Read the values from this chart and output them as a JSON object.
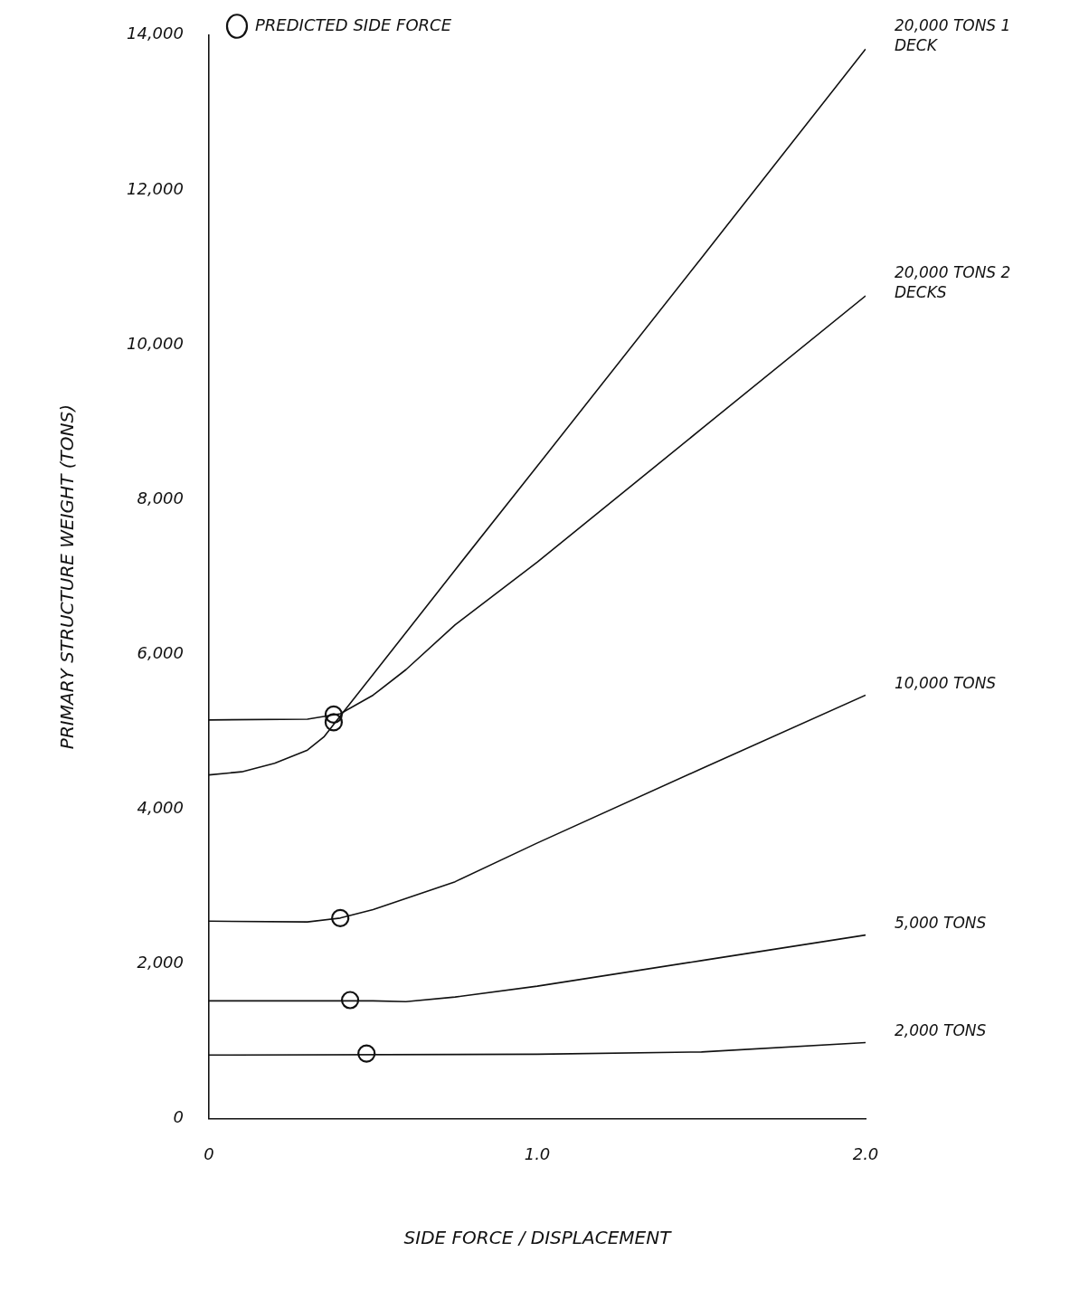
{
  "chart_data": {
    "type": "line",
    "xlabel": "SIDE FORCE / DISPLACEMENT",
    "ylabel": "PRIMARY STRUCTURE WEIGHT (TONS)",
    "xlim": [
      0,
      2
    ],
    "xticks": [
      0,
      {
        "value": 1,
        "label": "1.0"
      },
      {
        "value": 2,
        "label": "2.0"
      }
    ],
    "ylim": [
      0,
      14000
    ],
    "yticks": [
      0,
      {
        "value": 2000,
        "label": "2,000"
      },
      {
        "value": 4000,
        "label": "4,000"
      },
      {
        "value": 6000,
        "label": "6,000"
      },
      {
        "value": 8000,
        "label": "8,000"
      },
      {
        "value": 10000,
        "label": "10,000"
      },
      {
        "value": 12000,
        "label": "12,000"
      },
      {
        "value": 14000,
        "label": "14,000"
      }
    ],
    "grid": false,
    "legend": "top left",
    "marker": "none",
    "line_style": "solid",
    "series": [
      {
        "name": "20,000 TONS 1 DECK",
        "color": "#111111",
        "x": [
          0,
          0.1,
          0.2,
          0.3,
          0.35,
          0.4,
          0.5,
          0.75,
          1.0,
          1.5,
          2.0
        ],
        "values": [
          4440,
          4480,
          4590,
          4760,
          4930,
          5200,
          5740,
          7090,
          8430,
          11120,
          13820
        ]
      },
      {
        "name": "20,000 TONS 2 DECKS",
        "color": "#111111",
        "x": [
          0,
          0.3,
          0.4,
          0.5,
          0.6,
          0.75,
          1.0,
          1.5,
          2.0
        ],
        "values": [
          5150,
          5160,
          5230,
          5470,
          5800,
          6380,
          7190,
          8910,
          10630
        ]
      },
      {
        "name": "10,000 TONS",
        "color": "#111111",
        "x": [
          0,
          0.3,
          0.4,
          0.5,
          0.75,
          1.0,
          1.5,
          2.0
        ],
        "values": [
          2550,
          2540,
          2590,
          2700,
          3060,
          3560,
          4520,
          5470
        ]
      },
      {
        "name": "5,000 TONS",
        "color": "#111111",
        "x": [
          0,
          0.5,
          0.6,
          0.75,
          1.0,
          1.5,
          2.0
        ],
        "values": [
          1520,
          1520,
          1510,
          1570,
          1710,
          2040,
          2370
        ]
      },
      {
        "name": "2,000 TONS",
        "color": "#111111",
        "x": [
          0,
          1.0,
          1.5,
          2.0
        ],
        "values": [
          820,
          830,
          860,
          980
        ]
      },
      {
        "name": "PREDICTED SIDE FORCE",
        "type": "scatter",
        "marker": "circle",
        "color": "#111111",
        "x": [
          0.38,
          0.38,
          0.4,
          0.43,
          0.48
        ],
        "values": [
          5220,
          5120,
          2590,
          1530,
          840
        ]
      }
    ]
  }
}
